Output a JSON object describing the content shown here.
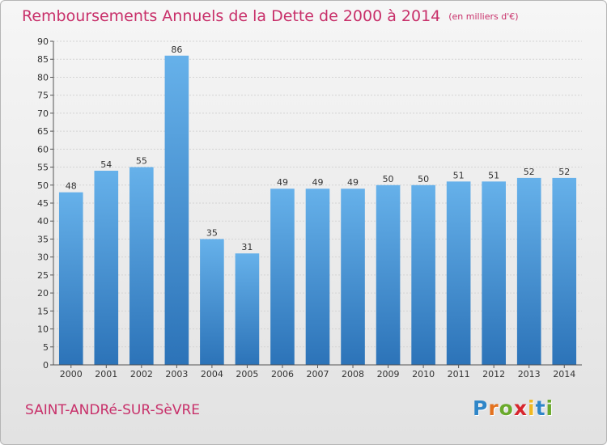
{
  "title": "Remboursements Annuels de la Dette de 2000 à 2014",
  "subtitle": "(en milliers d'€)",
  "city": "SAINT-ANDRé-SUR-SèVRE",
  "logo": {
    "text": "Proxiti",
    "letters": [
      "P",
      "r",
      "o",
      "x",
      "i",
      "t",
      "i"
    ],
    "colors": [
      "#2f86c8",
      "#e3721f",
      "#6aaa2c",
      "#d7262e",
      "#f0b822",
      "#2f86c8",
      "#6aaa2c"
    ]
  },
  "colors": {
    "title": "#c8306a",
    "bar_top": "#66b1ea",
    "bar_bottom": "#2c73b8",
    "grid": "#d4d4d4",
    "axis": "#555555"
  },
  "chart_data": {
    "type": "bar",
    "categories": [
      "2000",
      "2001",
      "2002",
      "2003",
      "2004",
      "2005",
      "2006",
      "2007",
      "2008",
      "2009",
      "2010",
      "2011",
      "2012",
      "2013",
      "2014"
    ],
    "values": [
      48,
      54,
      55,
      86,
      35,
      31,
      49,
      49,
      49,
      50,
      50,
      51,
      51,
      52,
      52
    ],
    "ylim": [
      0,
      90
    ],
    "yticks": [
      0,
      5,
      10,
      15,
      20,
      25,
      30,
      35,
      40,
      45,
      50,
      55,
      60,
      65,
      70,
      75,
      80,
      85,
      90
    ],
    "grid": true,
    "xlabel": "",
    "ylabel": ""
  }
}
